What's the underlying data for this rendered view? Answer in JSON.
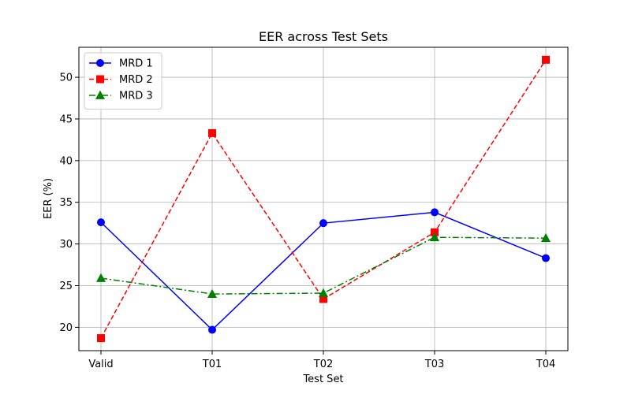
{
  "chart_data": {
    "type": "line",
    "title": "EER across Test Sets",
    "xlabel": "Test Set",
    "ylabel": "EER (%)",
    "categories": [
      "Valid",
      "T01",
      "T02",
      "T03",
      "T04"
    ],
    "ylim": [
      17.2,
      53.6
    ],
    "yticks": [
      20,
      25,
      30,
      35,
      40,
      45,
      50
    ],
    "grid": true,
    "legend_position": "top-left",
    "series": [
      {
        "name": "MRD 1",
        "values": [
          32.6,
          19.7,
          32.5,
          33.8,
          28.3
        ],
        "color": "#0000ff",
        "marker": "circle",
        "line_style": "solid"
      },
      {
        "name": "MRD 2",
        "values": [
          18.7,
          43.3,
          23.4,
          31.4,
          52.1
        ],
        "color": "#ff0000",
        "marker": "square",
        "line_style": "dashed"
      },
      {
        "name": "MRD 3",
        "values": [
          25.9,
          24.0,
          24.1,
          30.8,
          30.7
        ],
        "color": "#008000",
        "marker": "triangle",
        "line_style": "dashdot"
      }
    ]
  }
}
